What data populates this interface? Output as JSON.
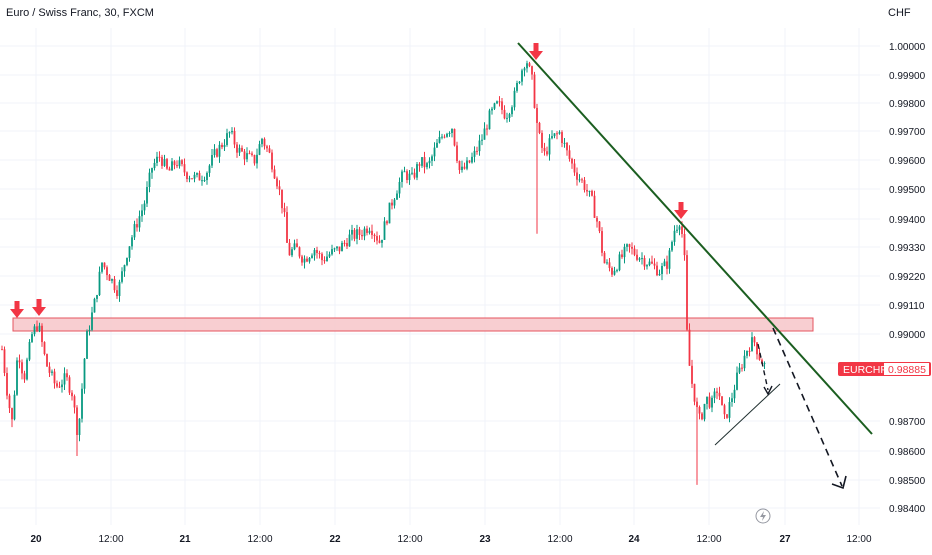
{
  "header": {
    "symbol_title": "Euro / Swiss Franc, 30, FXCM"
  },
  "price_axis": {
    "currency_label": "CHF",
    "tick_labels": [
      "1.00000",
      "0.99900",
      "0.99800",
      "0.99700",
      "0.99600",
      "0.99500",
      "0.99400",
      "0.99330",
      "0.99220",
      "0.99110",
      "0.99000",
      "0.98880",
      "0.98700",
      "0.98600",
      "0.98500",
      "0.98400"
    ]
  },
  "time_axis": {
    "tick_labels": [
      "20",
      "12:00",
      "21",
      "12:00",
      "22",
      "12:00",
      "23",
      "12:00",
      "24",
      "12:00",
      "27",
      "12:00"
    ]
  },
  "current_price": {
    "symbol": "EURCHF",
    "value": "0.98885",
    "color": "#f23645"
  },
  "colors": {
    "up_candle": "#089981",
    "down_candle": "#f23645",
    "zone_fill": "#f7c5c9",
    "zone_stroke": "#e5545f",
    "trendline": "#1b5e20",
    "arrow": "#f23645",
    "grid": "#f0f3fa"
  },
  "chart_data": {
    "type": "candlestick",
    "title": "Euro / Swiss Franc, 30, FXCM",
    "instrument": "EURCHF",
    "timeframe": "30",
    "y_unit": "CHF",
    "ylim": [
      0.984,
      1.0005
    ],
    "x_range": [
      "20",
      "27 12:00"
    ],
    "grid": true,
    "close_path": [
      [
        "20",
        0.989
      ],
      [
        "20 06:00",
        0.988
      ],
      [
        "20 12:00",
        0.9898
      ],
      [
        "20 18:00",
        0.992
      ],
      [
        "21",
        0.996
      ],
      [
        "21 06:00",
        0.9958
      ],
      [
        "21 12:00",
        0.9968
      ],
      [
        "21 18:00",
        0.9962
      ],
      [
        "22",
        0.9925
      ],
      [
        "22 06:00",
        0.9928
      ],
      [
        "22 12:00",
        0.9935
      ],
      [
        "22 18:00",
        0.9958
      ],
      [
        "23",
        0.9972
      ],
      [
        "23 06:00",
        0.9985
      ],
      [
        "23 12:00",
        0.9975
      ],
      [
        "23 18:00",
        0.9955
      ],
      [
        "24",
        0.9928
      ],
      [
        "24 06:00",
        0.9921
      ],
      [
        "24 12:00",
        0.9926
      ],
      [
        "24 15:00",
        0.9935
      ],
      [
        "24 18:00",
        0.987
      ],
      [
        "26 00:00",
        0.9869
      ],
      [
        "26 06:00",
        0.989
      ],
      [
        "26 08:00",
        0.98885
      ]
    ],
    "annotations": {
      "resistance_zone": [
        0.9902,
        0.99055
      ],
      "trendline_from": [
        "23 06:00",
        1.0001
      ],
      "trendline_to": [
        "27 12:00",
        0.9865
      ],
      "support_line_from": [
        "26 00:00",
        0.9862
      ],
      "support_line_to": [
        "26 08:00",
        0.9878
      ],
      "projection_target": 0.9848,
      "arrows_down": 4
    }
  }
}
